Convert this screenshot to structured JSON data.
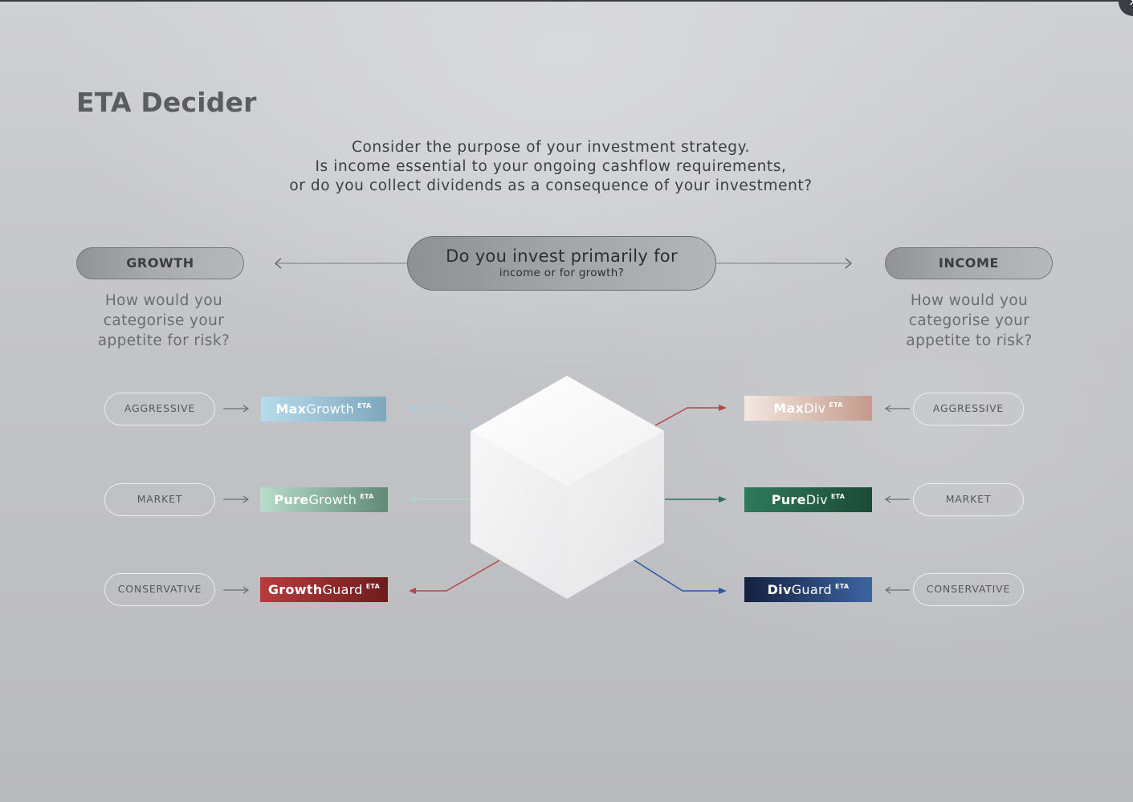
{
  "title": "ETA Decider",
  "intro": {
    "line1": "Consider the purpose of your investment strategy.",
    "line2": "Is income essential to your ongoing cashflow requirements,",
    "line3": "or do you collect dividends as a consequence of your investment?"
  },
  "close_label": "×",
  "center": {
    "question": "Do you invest primarily for",
    "sub": "income or for growth?"
  },
  "growth": {
    "label": "GROWTH",
    "question": [
      "How would you",
      "categorise your",
      "appetite for risk?"
    ],
    "options": [
      {
        "risk": "AGGRESSIVE",
        "product_bold": "Max",
        "product_rest": "Growth",
        "badge": "ETA",
        "color_from": "#b6dbeb",
        "color_to": "#7fa8bd"
      },
      {
        "risk": "MARKET",
        "product_bold": "Pure",
        "product_rest": "Growth",
        "badge": "ETA",
        "color_from": "#b9dccd",
        "color_to": "#5f8a76"
      },
      {
        "risk": "CONSERVATIVE",
        "product_bold": "Growth",
        "product_rest": "Guard",
        "badge": "ETA",
        "color_from": "#b73c3d",
        "color_to": "#6e1c1e"
      }
    ]
  },
  "income": {
    "label": "INCOME",
    "question": [
      "How would you",
      "categorise your",
      "appetite to risk?"
    ],
    "options": [
      {
        "risk": "AGGRESSIVE",
        "product_bold": "Max",
        "product_rest": "Div",
        "badge": "ETA",
        "color_from": "#f3e8e1",
        "color_to": "#c49a8c"
      },
      {
        "risk": "MARKET",
        "product_bold": "Pure",
        "product_rest": "Div",
        "badge": "ETA",
        "color_from": "#2f7a5c",
        "color_to": "#1c4a38"
      },
      {
        "risk": "CONSERVATIVE",
        "product_bold": "Div",
        "product_rest": "Guard",
        "badge": "ETA",
        "color_from": "#14213f",
        "color_to": "#3d64a3"
      }
    ]
  }
}
